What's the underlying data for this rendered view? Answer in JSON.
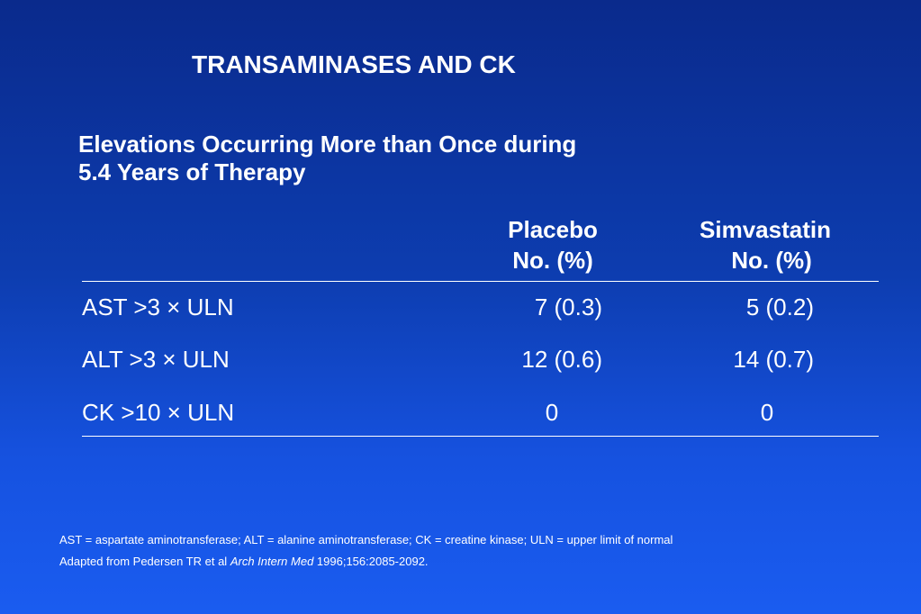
{
  "slide": {
    "title": "TRANSAMINASES AND CK",
    "subtitle_line1": "Elevations Occurring More than Once during",
    "subtitle_line2": "5.4 Years of Therapy"
  },
  "table": {
    "columns": [
      {
        "name": "Placebo",
        "unit": "No. (%)"
      },
      {
        "name": "Simvastatin",
        "unit": "No. (%)"
      }
    ],
    "rows": [
      {
        "label": "AST >3 × ULN",
        "placebo": "7 (0.3)",
        "simvastatin": "5 (0.2)"
      },
      {
        "label": "ALT >3 × ULN",
        "placebo": "12 (0.6)",
        "simvastatin": "14 (0.7)"
      },
      {
        "label": "CK >10 × ULN",
        "placebo": "0",
        "simvastatin": "0"
      }
    ]
  },
  "footnotes": {
    "abbreviations": "AST = aspartate aminotransferase; ALT = alanine aminotransferase; CK = creatine kinase; ULN = upper limit of normal",
    "source_prefix": "Adapted from Pedersen TR et al ",
    "source_journal": "Arch Intern Med",
    "source_suffix": " 1996;156:2085-2092."
  },
  "colors": {
    "background_top": "#0a2a8c",
    "background_bottom": "#1a5cf0",
    "text": "#ffffff"
  }
}
